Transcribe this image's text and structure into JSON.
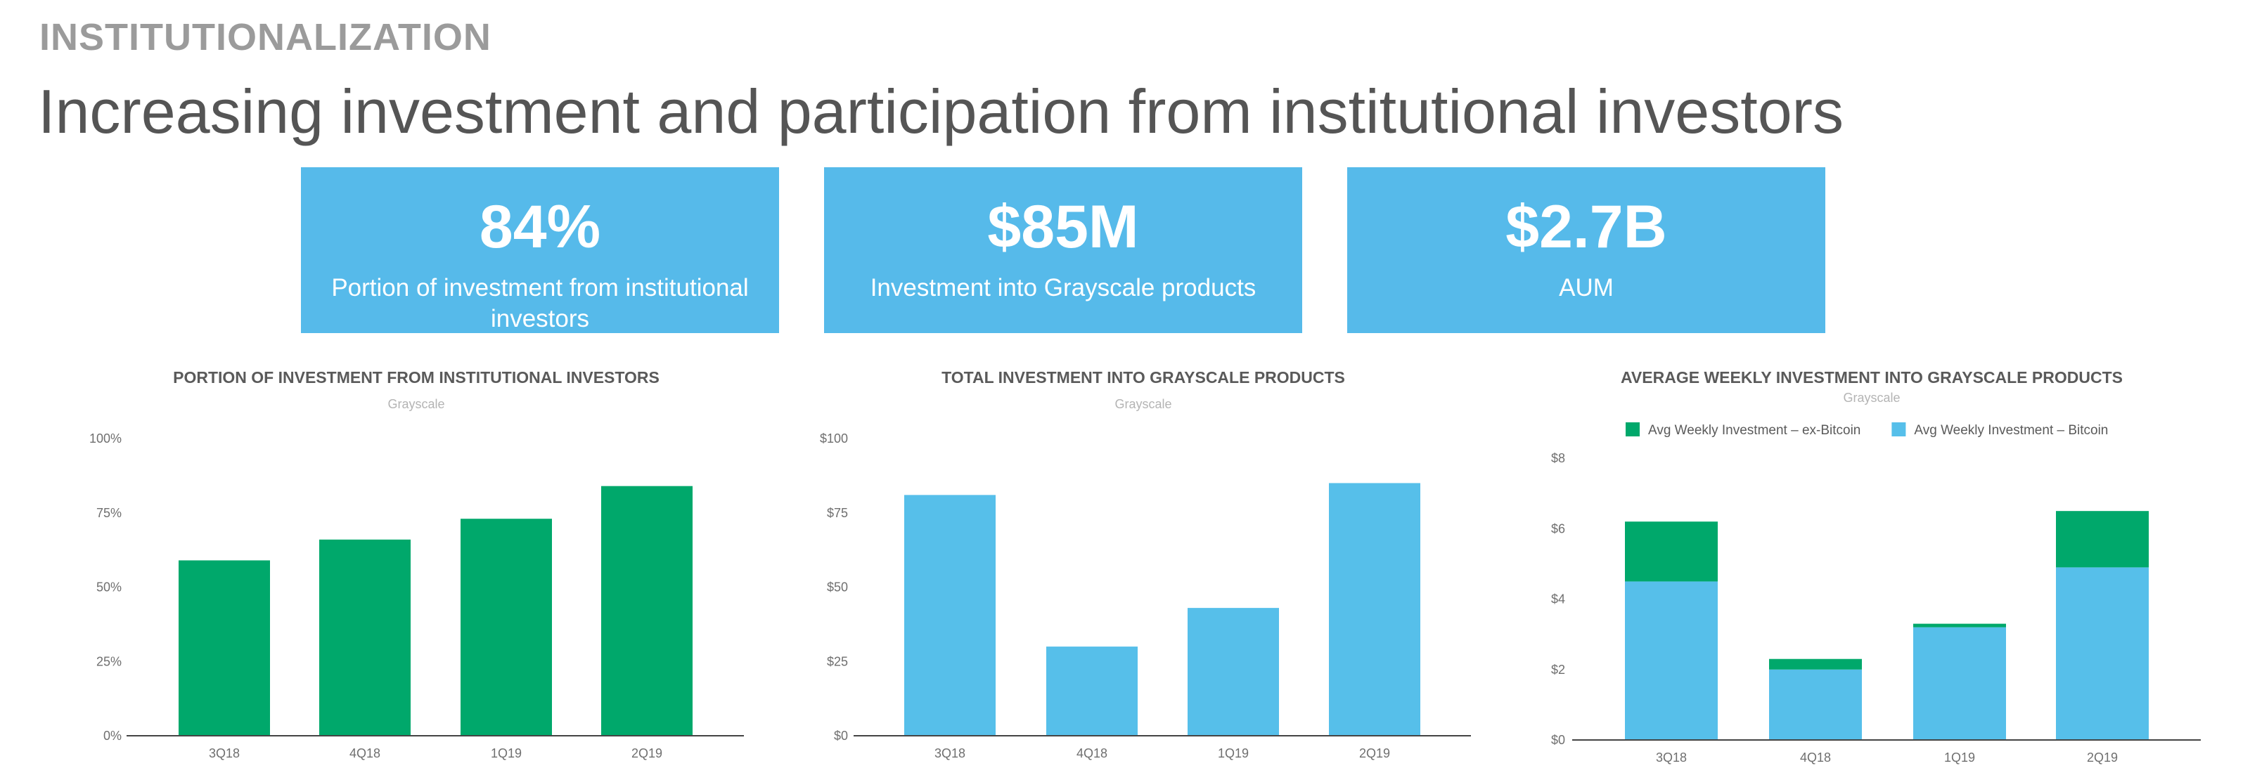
{
  "header": {
    "kicker": "INSTITUTIONALIZATION",
    "title": "Increasing investment and participation from institutional investors"
  },
  "stats": [
    {
      "value": "84%",
      "label": "Portion of investment from institutional investors"
    },
    {
      "value": "$85M",
      "label": "Investment into Grayscale products"
    },
    {
      "value": "$2.7B",
      "label": "AUM"
    }
  ],
  "colors": {
    "green": "#00a86b",
    "blue": "#56bfea",
    "stat_bg": "#56baea"
  },
  "chart_data": [
    {
      "type": "bar",
      "title": "PORTION OF INVESTMENT FROM INSTITUTIONAL INVESTORS",
      "subtitle": "Grayscale",
      "categories": [
        "3Q18",
        "4Q18",
        "1Q19",
        "2Q19"
      ],
      "values": [
        59,
        66,
        73,
        84
      ],
      "yticks": [
        "0%",
        "25%",
        "50%",
        "75%",
        "100%"
      ],
      "ylim": [
        0,
        100
      ],
      "color": "#00a86b",
      "grid": false,
      "legend": null
    },
    {
      "type": "bar",
      "title": "TOTAL INVESTMENT INTO GRAYSCALE PRODUCTS",
      "subtitle": "Grayscale",
      "categories": [
        "3Q18",
        "4Q18",
        "1Q19",
        "2Q19"
      ],
      "values": [
        81,
        30,
        43,
        85
      ],
      "yticks": [
        "$0",
        "$25",
        "$50",
        "$75",
        "$100"
      ],
      "ylim": [
        0,
        100
      ],
      "color": "#56bfea",
      "grid": false,
      "legend": null
    },
    {
      "type": "bar",
      "stacked": true,
      "title": "AVERAGE WEEKLY INVESTMENT INTO GRAYSCALE PRODUCTS",
      "subtitle": "Grayscale",
      "categories": [
        "3Q18",
        "4Q18",
        "1Q19",
        "2Q19"
      ],
      "series": [
        {
          "name": "Avg Weekly Investment – Bitcoin",
          "values": [
            4.5,
            2.0,
            3.2,
            4.9
          ],
          "color": "#56bfea"
        },
        {
          "name": "Avg Weekly Investment – ex-Bitcoin",
          "values": [
            1.7,
            0.3,
            0.1,
            1.6
          ],
          "color": "#00a86b"
        }
      ],
      "legend_order": [
        1,
        0
      ],
      "yticks": [
        "$0",
        "$2",
        "$4",
        "$6",
        "$8"
      ],
      "ylim": [
        0,
        8
      ],
      "grid": false,
      "legend": "top"
    }
  ]
}
